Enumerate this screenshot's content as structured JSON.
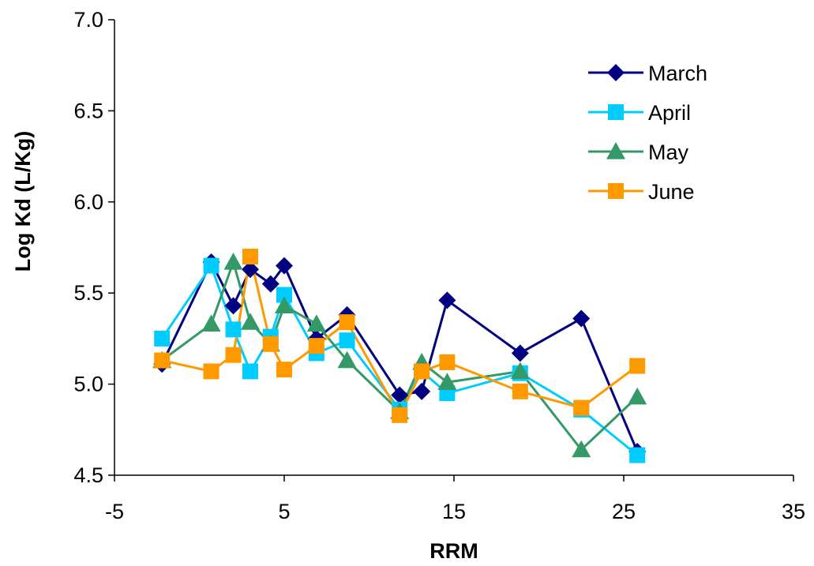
{
  "chart_data": {
    "type": "line",
    "title": "",
    "xlabel": "RRM",
    "ylabel": "Log Kd (L/Kg)",
    "xlim": [
      -5,
      35
    ],
    "ylim": [
      4.5,
      7.0
    ],
    "xticks": [
      "-5",
      "5",
      "15",
      "25",
      "35"
    ],
    "yticks": [
      "4.5",
      "5.0",
      "5.5",
      "6.0",
      "6.5",
      "7.0"
    ],
    "grid": false,
    "legend_position": "top-right",
    "series": [
      {
        "name": "March",
        "color": "#000080",
        "marker": "diamond",
        "points": [
          [
            -2.2,
            5.11
          ],
          [
            0.7,
            5.67
          ],
          [
            2.0,
            5.43
          ],
          [
            3.0,
            5.63
          ],
          [
            4.2,
            5.55
          ],
          [
            5.0,
            5.65
          ],
          [
            6.9,
            5.25
          ],
          [
            8.7,
            5.38
          ],
          [
            11.8,
            4.94
          ],
          [
            13.1,
            4.96
          ],
          [
            14.6,
            5.46
          ],
          [
            18.9,
            5.17
          ],
          [
            22.5,
            5.36
          ],
          [
            25.8,
            4.63
          ]
        ]
      },
      {
        "name": "April",
        "color": "#00CCFF",
        "marker": "square",
        "points": [
          [
            -2.2,
            5.25
          ],
          [
            0.7,
            5.65
          ],
          [
            2.0,
            5.3
          ],
          [
            3.0,
            5.07
          ],
          [
            4.2,
            5.26
          ],
          [
            5.0,
            5.49
          ],
          [
            6.9,
            5.17
          ],
          [
            8.7,
            5.24
          ],
          [
            11.8,
            4.86
          ],
          [
            13.1,
            5.07
          ],
          [
            14.6,
            4.95
          ],
          [
            18.9,
            5.06
          ],
          [
            22.5,
            4.86
          ],
          [
            25.8,
            4.61
          ]
        ]
      },
      {
        "name": "May",
        "color": "#339966",
        "marker": "triangle",
        "points": [
          [
            -2.2,
            5.13
          ],
          [
            0.7,
            5.33
          ],
          [
            2.0,
            5.67
          ],
          [
            3.0,
            5.34
          ],
          [
            4.2,
            5.22
          ],
          [
            5.0,
            5.43
          ],
          [
            6.9,
            5.33
          ],
          [
            8.7,
            5.13
          ],
          [
            11.8,
            4.85
          ],
          [
            13.1,
            5.12
          ],
          [
            14.6,
            5.01
          ],
          [
            18.9,
            5.07
          ],
          [
            22.5,
            4.64
          ],
          [
            25.8,
            4.93
          ]
        ]
      },
      {
        "name": "June",
        "color": "#FF9900",
        "marker": "square",
        "points": [
          [
            -2.2,
            5.13
          ],
          [
            0.7,
            5.07
          ],
          [
            2.0,
            5.16
          ],
          [
            3.0,
            5.7
          ],
          [
            4.2,
            5.22
          ],
          [
            5.0,
            5.08
          ],
          [
            6.9,
            5.21
          ],
          [
            8.7,
            5.34
          ],
          [
            11.8,
            4.83
          ],
          [
            13.1,
            5.07
          ],
          [
            14.6,
            5.12
          ],
          [
            18.9,
            4.96
          ],
          [
            22.5,
            4.87
          ],
          [
            25.8,
            5.1
          ]
        ]
      }
    ]
  }
}
